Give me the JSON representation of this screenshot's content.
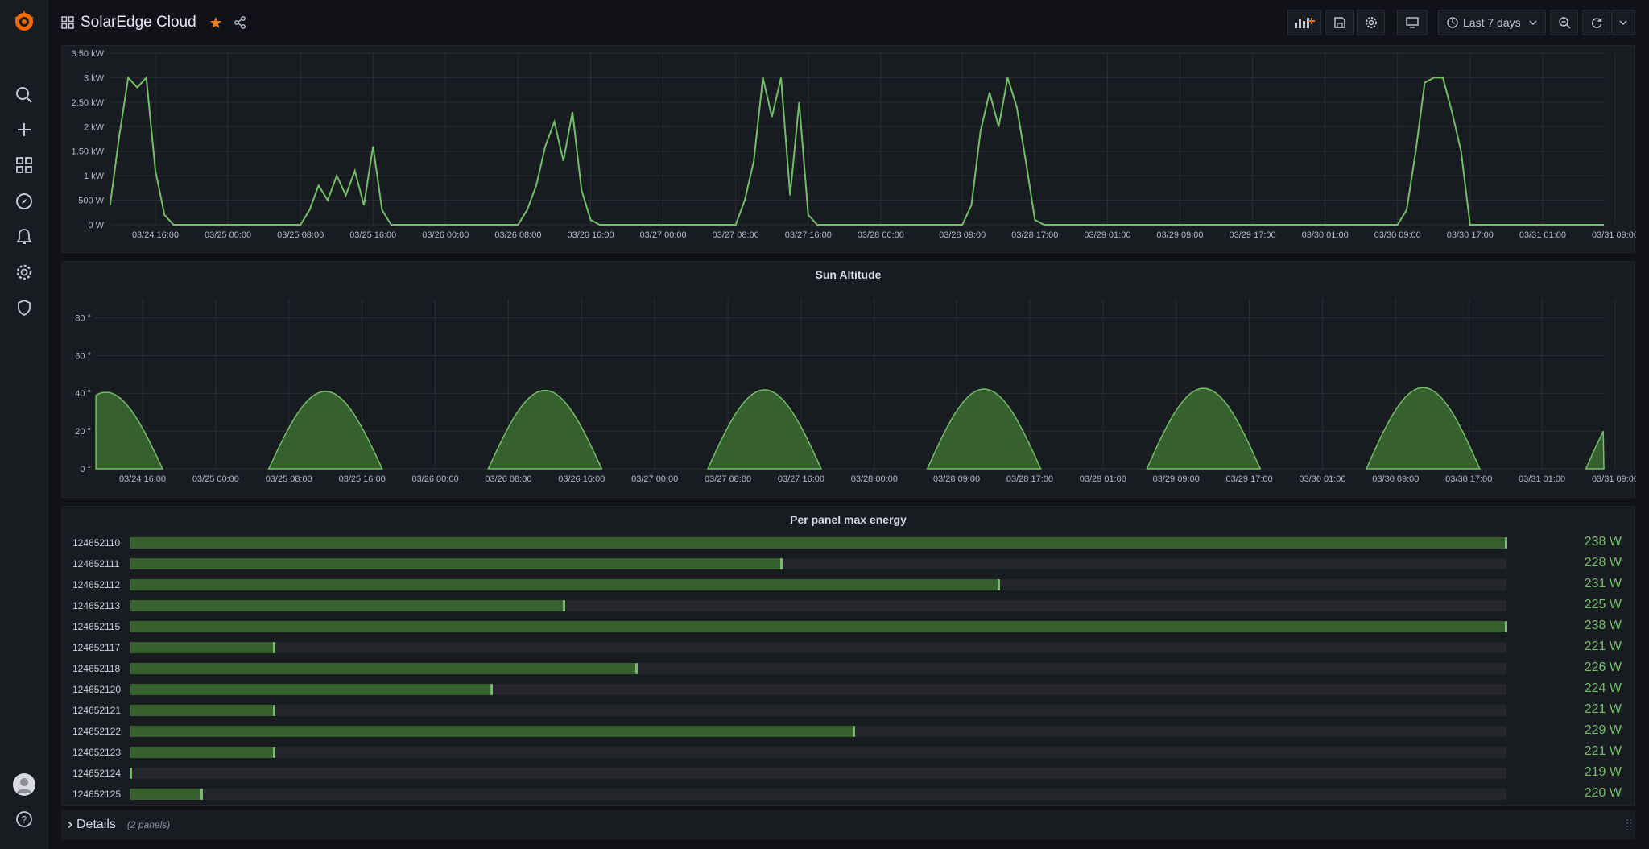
{
  "header": {
    "title": "SolarEdge Cloud",
    "time_range": "Last 7 days"
  },
  "sidebar": {
    "items": [
      "search-icon",
      "plus-icon",
      "dashboards-icon",
      "explore-icon",
      "alerting-icon",
      "configuration-icon",
      "shield-icon"
    ]
  },
  "colors": {
    "series": "#73bf69",
    "fill": "#37602f",
    "background": "#111217",
    "panel": "#181b1f"
  },
  "chart_data": [
    {
      "type": "line",
      "title": "",
      "x_ticks": [
        "03/24 16:00",
        "03/25 00:00",
        "03/25 08:00",
        "03/25 16:00",
        "03/26 00:00",
        "03/26 08:00",
        "03/26 16:00",
        "03/27 00:00",
        "03/27 08:00",
        "03/27 16:00",
        "03/28 00:00",
        "03/28 09:00",
        "03/28 17:00",
        "03/29 01:00",
        "03/29 09:00",
        "03/29 17:00",
        "03/30 01:00",
        "03/30 09:00",
        "03/30 17:00",
        "03/31 01:00",
        "03/31 09:00"
      ],
      "y_ticks": [
        "0 W",
        "500 W",
        "1 kW",
        "1.50 kW",
        "2 kW",
        "2.50 kW",
        "3 kW",
        "3.50 kW"
      ],
      "ylim": [
        0,
        3.5
      ],
      "grid": true,
      "series": [
        {
          "values_kw": [
            [
              "03/24 11:00",
              0.4
            ],
            [
              "03/24 12:00",
              1.8
            ],
            [
              "03/24 13:00",
              3.0
            ],
            [
              "03/24 14:00",
              2.8
            ],
            [
              "03/24 15:00",
              3.0
            ],
            [
              "03/24 16:00",
              1.1
            ],
            [
              "03/24 17:00",
              0.2
            ],
            [
              "03/24 18:00",
              0.0
            ],
            [
              "03/25 08:00",
              0.0
            ],
            [
              "03/25 09:00",
              0.3
            ],
            [
              "03/25 10:00",
              0.8
            ],
            [
              "03/25 11:00",
              0.5
            ],
            [
              "03/25 12:00",
              1.0
            ],
            [
              "03/25 13:00",
              0.6
            ],
            [
              "03/25 14:00",
              1.1
            ],
            [
              "03/25 15:00",
              0.4
            ],
            [
              "03/25 16:00",
              1.6
            ],
            [
              "03/25 17:00",
              0.3
            ],
            [
              "03/25 18:00",
              0.0
            ],
            [
              "03/26 08:00",
              0.0
            ],
            [
              "03/26 09:00",
              0.3
            ],
            [
              "03/26 10:00",
              0.8
            ],
            [
              "03/26 11:00",
              1.6
            ],
            [
              "03/26 12:00",
              2.1
            ],
            [
              "03/26 13:00",
              1.3
            ],
            [
              "03/26 14:00",
              2.3
            ],
            [
              "03/26 15:00",
              0.7
            ],
            [
              "03/26 16:00",
              0.1
            ],
            [
              "03/26 17:00",
              0.0
            ],
            [
              "03/27 08:00",
              0.0
            ],
            [
              "03/27 09:00",
              0.5
            ],
            [
              "03/27 10:00",
              1.3
            ],
            [
              "03/27 11:00",
              3.0
            ],
            [
              "03/27 12:00",
              2.2
            ],
            [
              "03/27 13:00",
              3.0
            ],
            [
              "03/27 14:00",
              0.6
            ],
            [
              "03/27 15:00",
              2.5
            ],
            [
              "03/27 16:00",
              0.2
            ],
            [
              "03/27 17:00",
              0.0
            ],
            [
              "03/28 09:00",
              0.0
            ],
            [
              "03/28 10:00",
              0.4
            ],
            [
              "03/28 11:00",
              1.9
            ],
            [
              "03/28 12:00",
              2.7
            ],
            [
              "03/28 13:00",
              2.0
            ],
            [
              "03/28 14:00",
              3.0
            ],
            [
              "03/28 15:00",
              2.4
            ],
            [
              "03/28 16:00",
              1.3
            ],
            [
              "03/28 17:00",
              0.1
            ],
            [
              "03/28 18:00",
              0.0
            ],
            [
              "03/30 09:00",
              0.0
            ],
            [
              "03/30 10:00",
              0.3
            ],
            [
              "03/30 11:00",
              1.5
            ],
            [
              "03/30 12:00",
              2.9
            ],
            [
              "03/30 13:00",
              3.0
            ],
            [
              "03/30 14:00",
              3.0
            ],
            [
              "03/30 15:00",
              2.3
            ],
            [
              "03/30 16:00",
              1.5
            ],
            [
              "03/30 17:00",
              0.0
            ]
          ]
        }
      ]
    },
    {
      "type": "area",
      "title": "Sun Altitude",
      "x_ticks": [
        "03/24 16:00",
        "03/25 00:00",
        "03/25 08:00",
        "03/25 16:00",
        "03/26 00:00",
        "03/26 08:00",
        "03/26 16:00",
        "03/27 00:00",
        "03/27 08:00",
        "03/27 16:00",
        "03/28 00:00",
        "03/28 09:00",
        "03/28 17:00",
        "03/29 01:00",
        "03/29 09:00",
        "03/29 17:00",
        "03/30 01:00",
        "03/30 09:00",
        "03/30 17:00",
        "03/31 01:00",
        "03/31 09:00"
      ],
      "y_ticks": [
        "0 °",
        "20 °",
        "40 °",
        "60 °",
        "80 °"
      ],
      "ylim": [
        0,
        90
      ],
      "grid": true,
      "series": [
        {
          "peaks_deg": [
            40.5,
            41.0,
            41.5,
            41.8,
            42.2,
            42.6,
            43.0
          ]
        }
      ]
    }
  ],
  "panel_bars": {
    "title": "Per panel max energy",
    "range_w": [
      219,
      238
    ],
    "rows": [
      {
        "label": "124652110",
        "value": 238,
        "value_text": "238 W"
      },
      {
        "label": "124652111",
        "value": 228,
        "value_text": "228 W"
      },
      {
        "label": "124652112",
        "value": 231,
        "value_text": "231 W"
      },
      {
        "label": "124652113",
        "value": 225,
        "value_text": "225 W"
      },
      {
        "label": "124652115",
        "value": 238,
        "value_text": "238 W"
      },
      {
        "label": "124652117",
        "value": 221,
        "value_text": "221 W"
      },
      {
        "label": "124652118",
        "value": 226,
        "value_text": "226 W"
      },
      {
        "label": "124652120",
        "value": 224,
        "value_text": "224 W"
      },
      {
        "label": "124652121",
        "value": 221,
        "value_text": "221 W"
      },
      {
        "label": "124652122",
        "value": 229,
        "value_text": "229 W"
      },
      {
        "label": "124652123",
        "value": 221,
        "value_text": "221 W"
      },
      {
        "label": "124652124",
        "value": 219,
        "value_text": "219 W"
      },
      {
        "label": "124652125",
        "value": 220,
        "value_text": "220 W"
      }
    ]
  },
  "details_row": {
    "label": "Details",
    "count": "(2 panels)"
  }
}
